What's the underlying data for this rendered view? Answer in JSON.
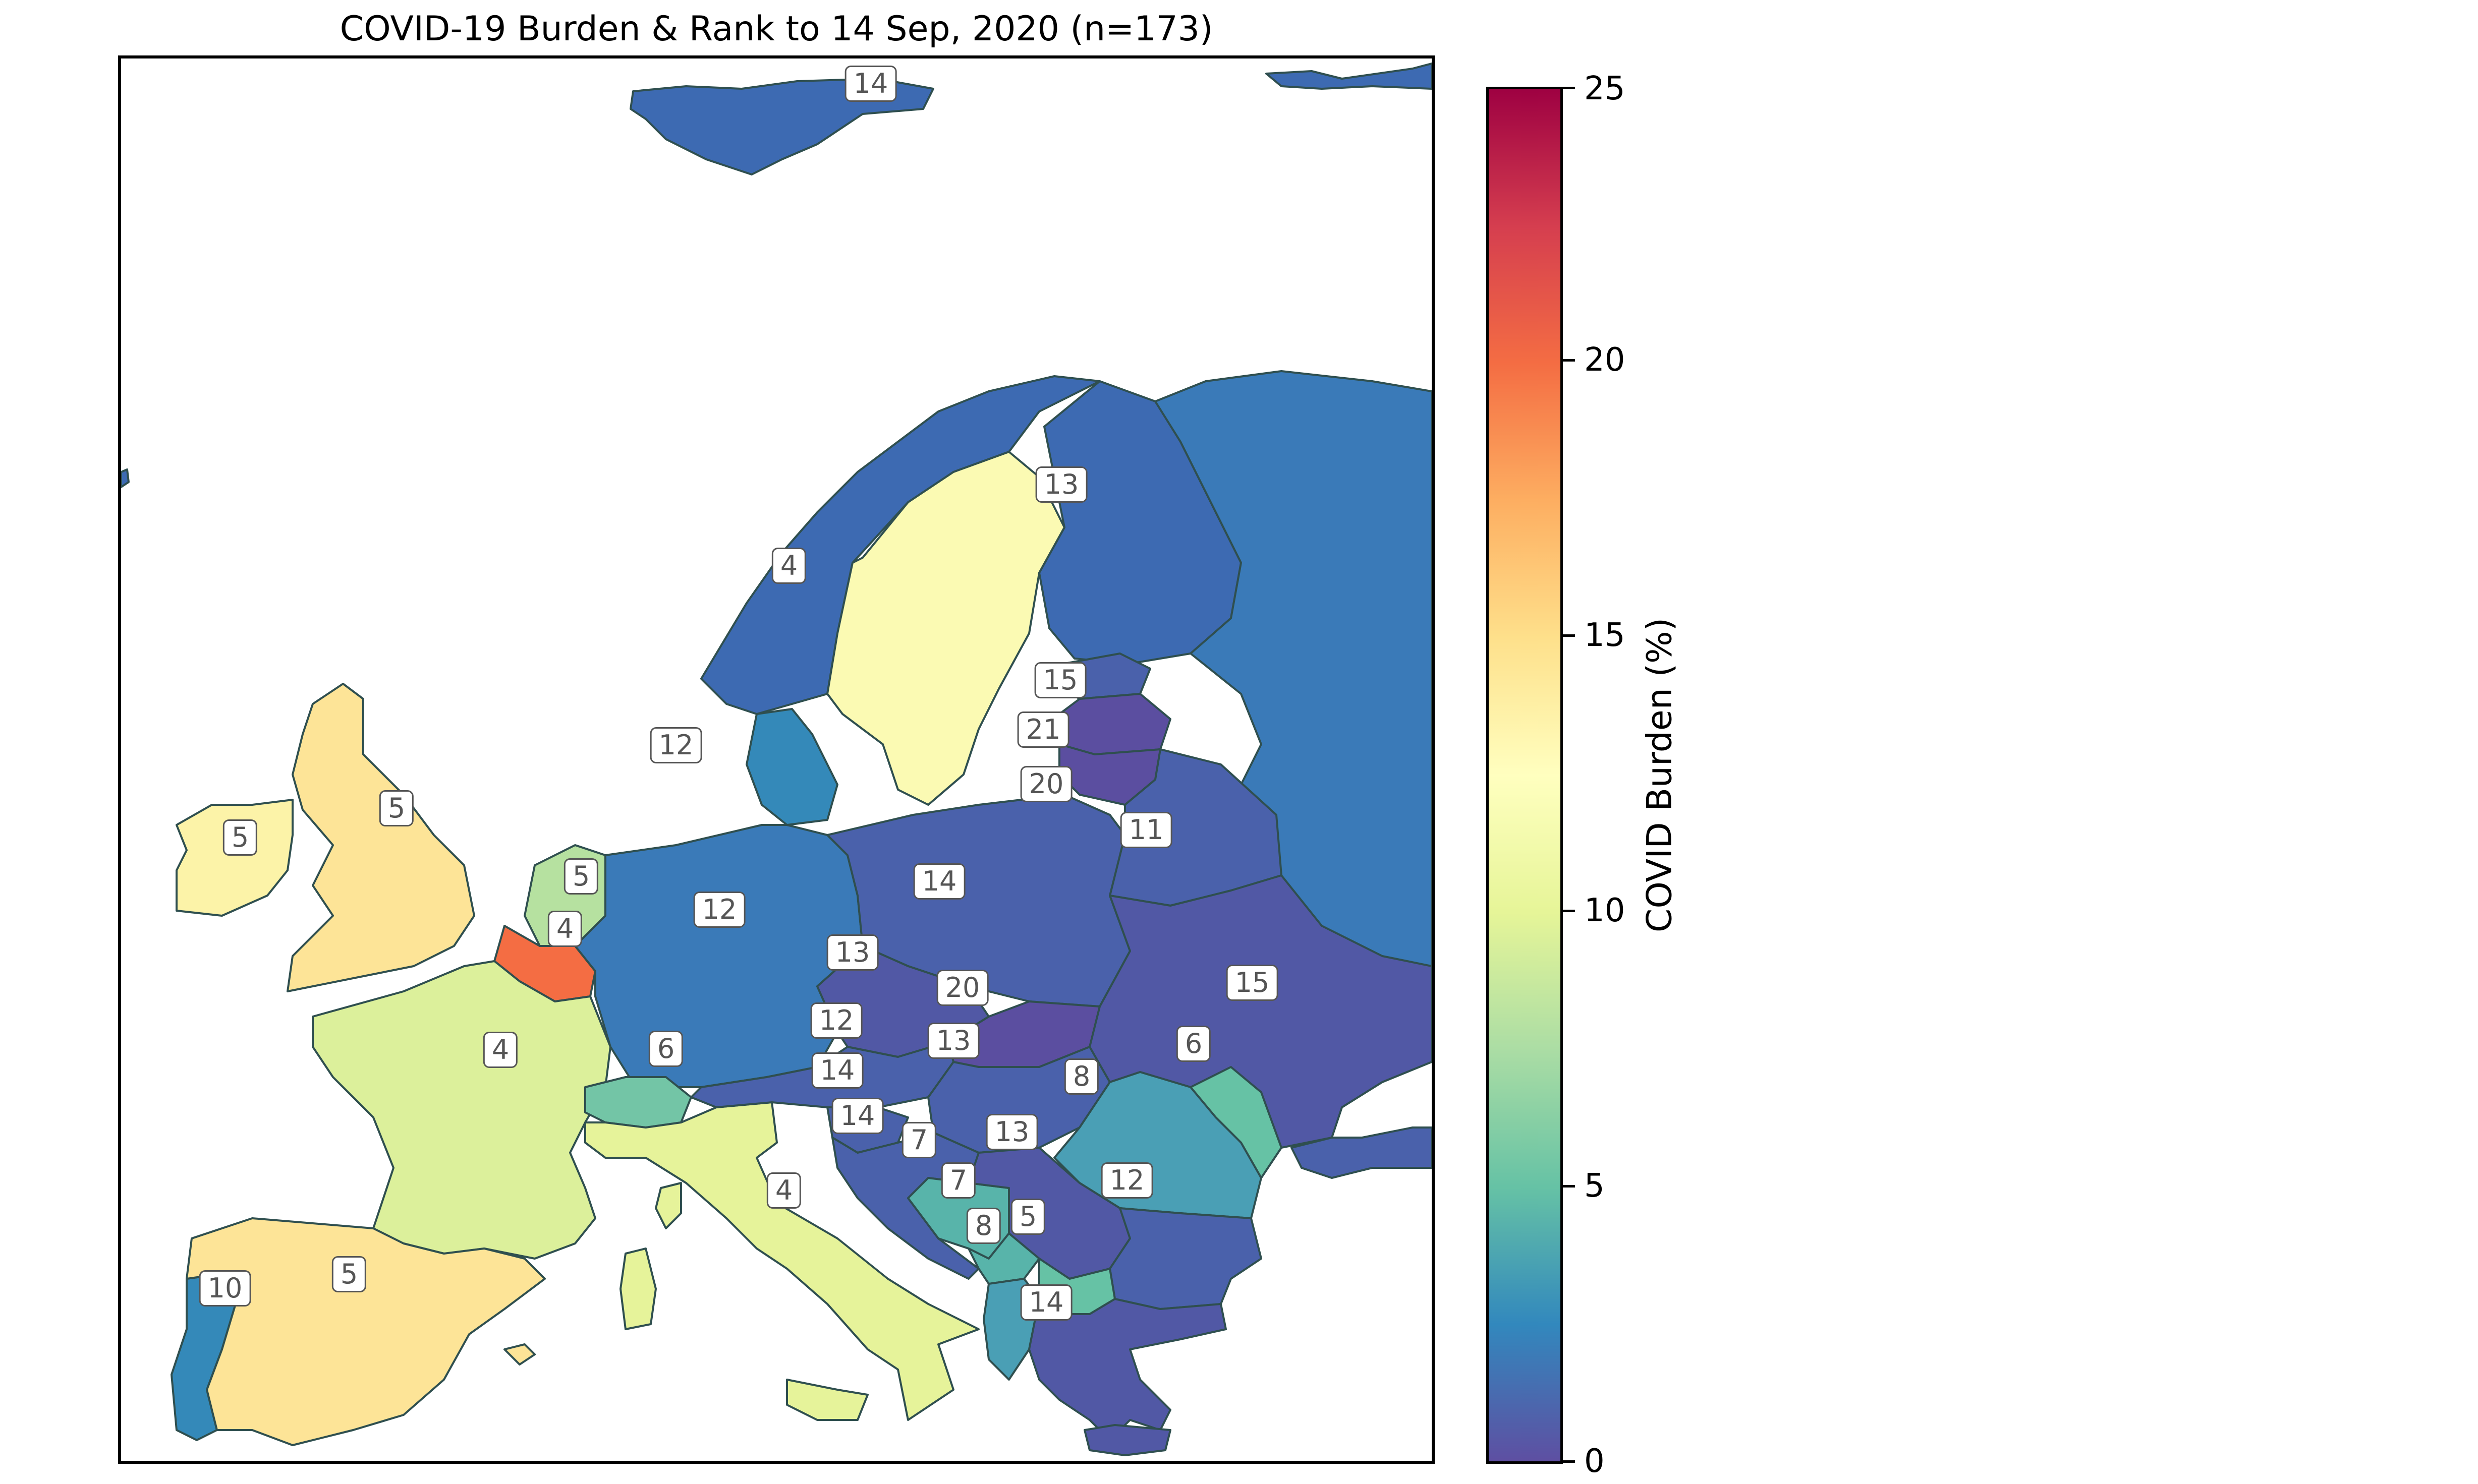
{
  "title": "COVID-19 Burden & Rank to 14 Sep, 2020 (n=173)",
  "colorbar": {
    "label": "COVID Burden (%)",
    "ticks": [
      "0",
      "5",
      "10",
      "15",
      "20",
      "25"
    ]
  },
  "labels": {
    "svalbard": "14",
    "finland": "13",
    "sweden": "4",
    "estonia": "15",
    "latvia": "21",
    "lithuania": "20",
    "denmark": "12",
    "belarus": "11",
    "ireland": "5",
    "united_kingdom": "5",
    "netherlands": "5",
    "belgium": "4",
    "germany": "12",
    "poland": "14",
    "czechia": "13",
    "slovakia": "20",
    "ukraine": "15",
    "france": "4",
    "switzerland": "6",
    "austria": "12",
    "hungary": "13",
    "moldova": "6",
    "romania": "8",
    "slovenia": "14",
    "croatia": "14",
    "bosnia": "7",
    "serbia": "13",
    "montenegro": "7",
    "bulgaria": "12",
    "albania": "8",
    "north_macedonia": "5",
    "italy": "4",
    "greece": "14",
    "portugal": "10",
    "spain": "5"
  },
  "colors": {
    "norway_russia": "#3a7ab8",
    "finland": "#3d6ab2",
    "sweden": "#fbfab3",
    "baltics_dark": "#5b4ea0",
    "uk_spain": "#fde497",
    "ireland": "#fcf3a8",
    "france": "#dcf09b",
    "italy": "#e6f39a",
    "netherlands": "#b6e1a0",
    "belgium": "#f46d43",
    "switzerland": "#73c5a6",
    "portugal": "#3489b9",
    "romania": "#4a9fb5",
    "bosnia": "#58b4aa",
    "germany": "#3a7ab8",
    "poland": "#4a61ab",
    "ukraine": "#5158a5",
    "coast": "#2f4f4f"
  }
}
